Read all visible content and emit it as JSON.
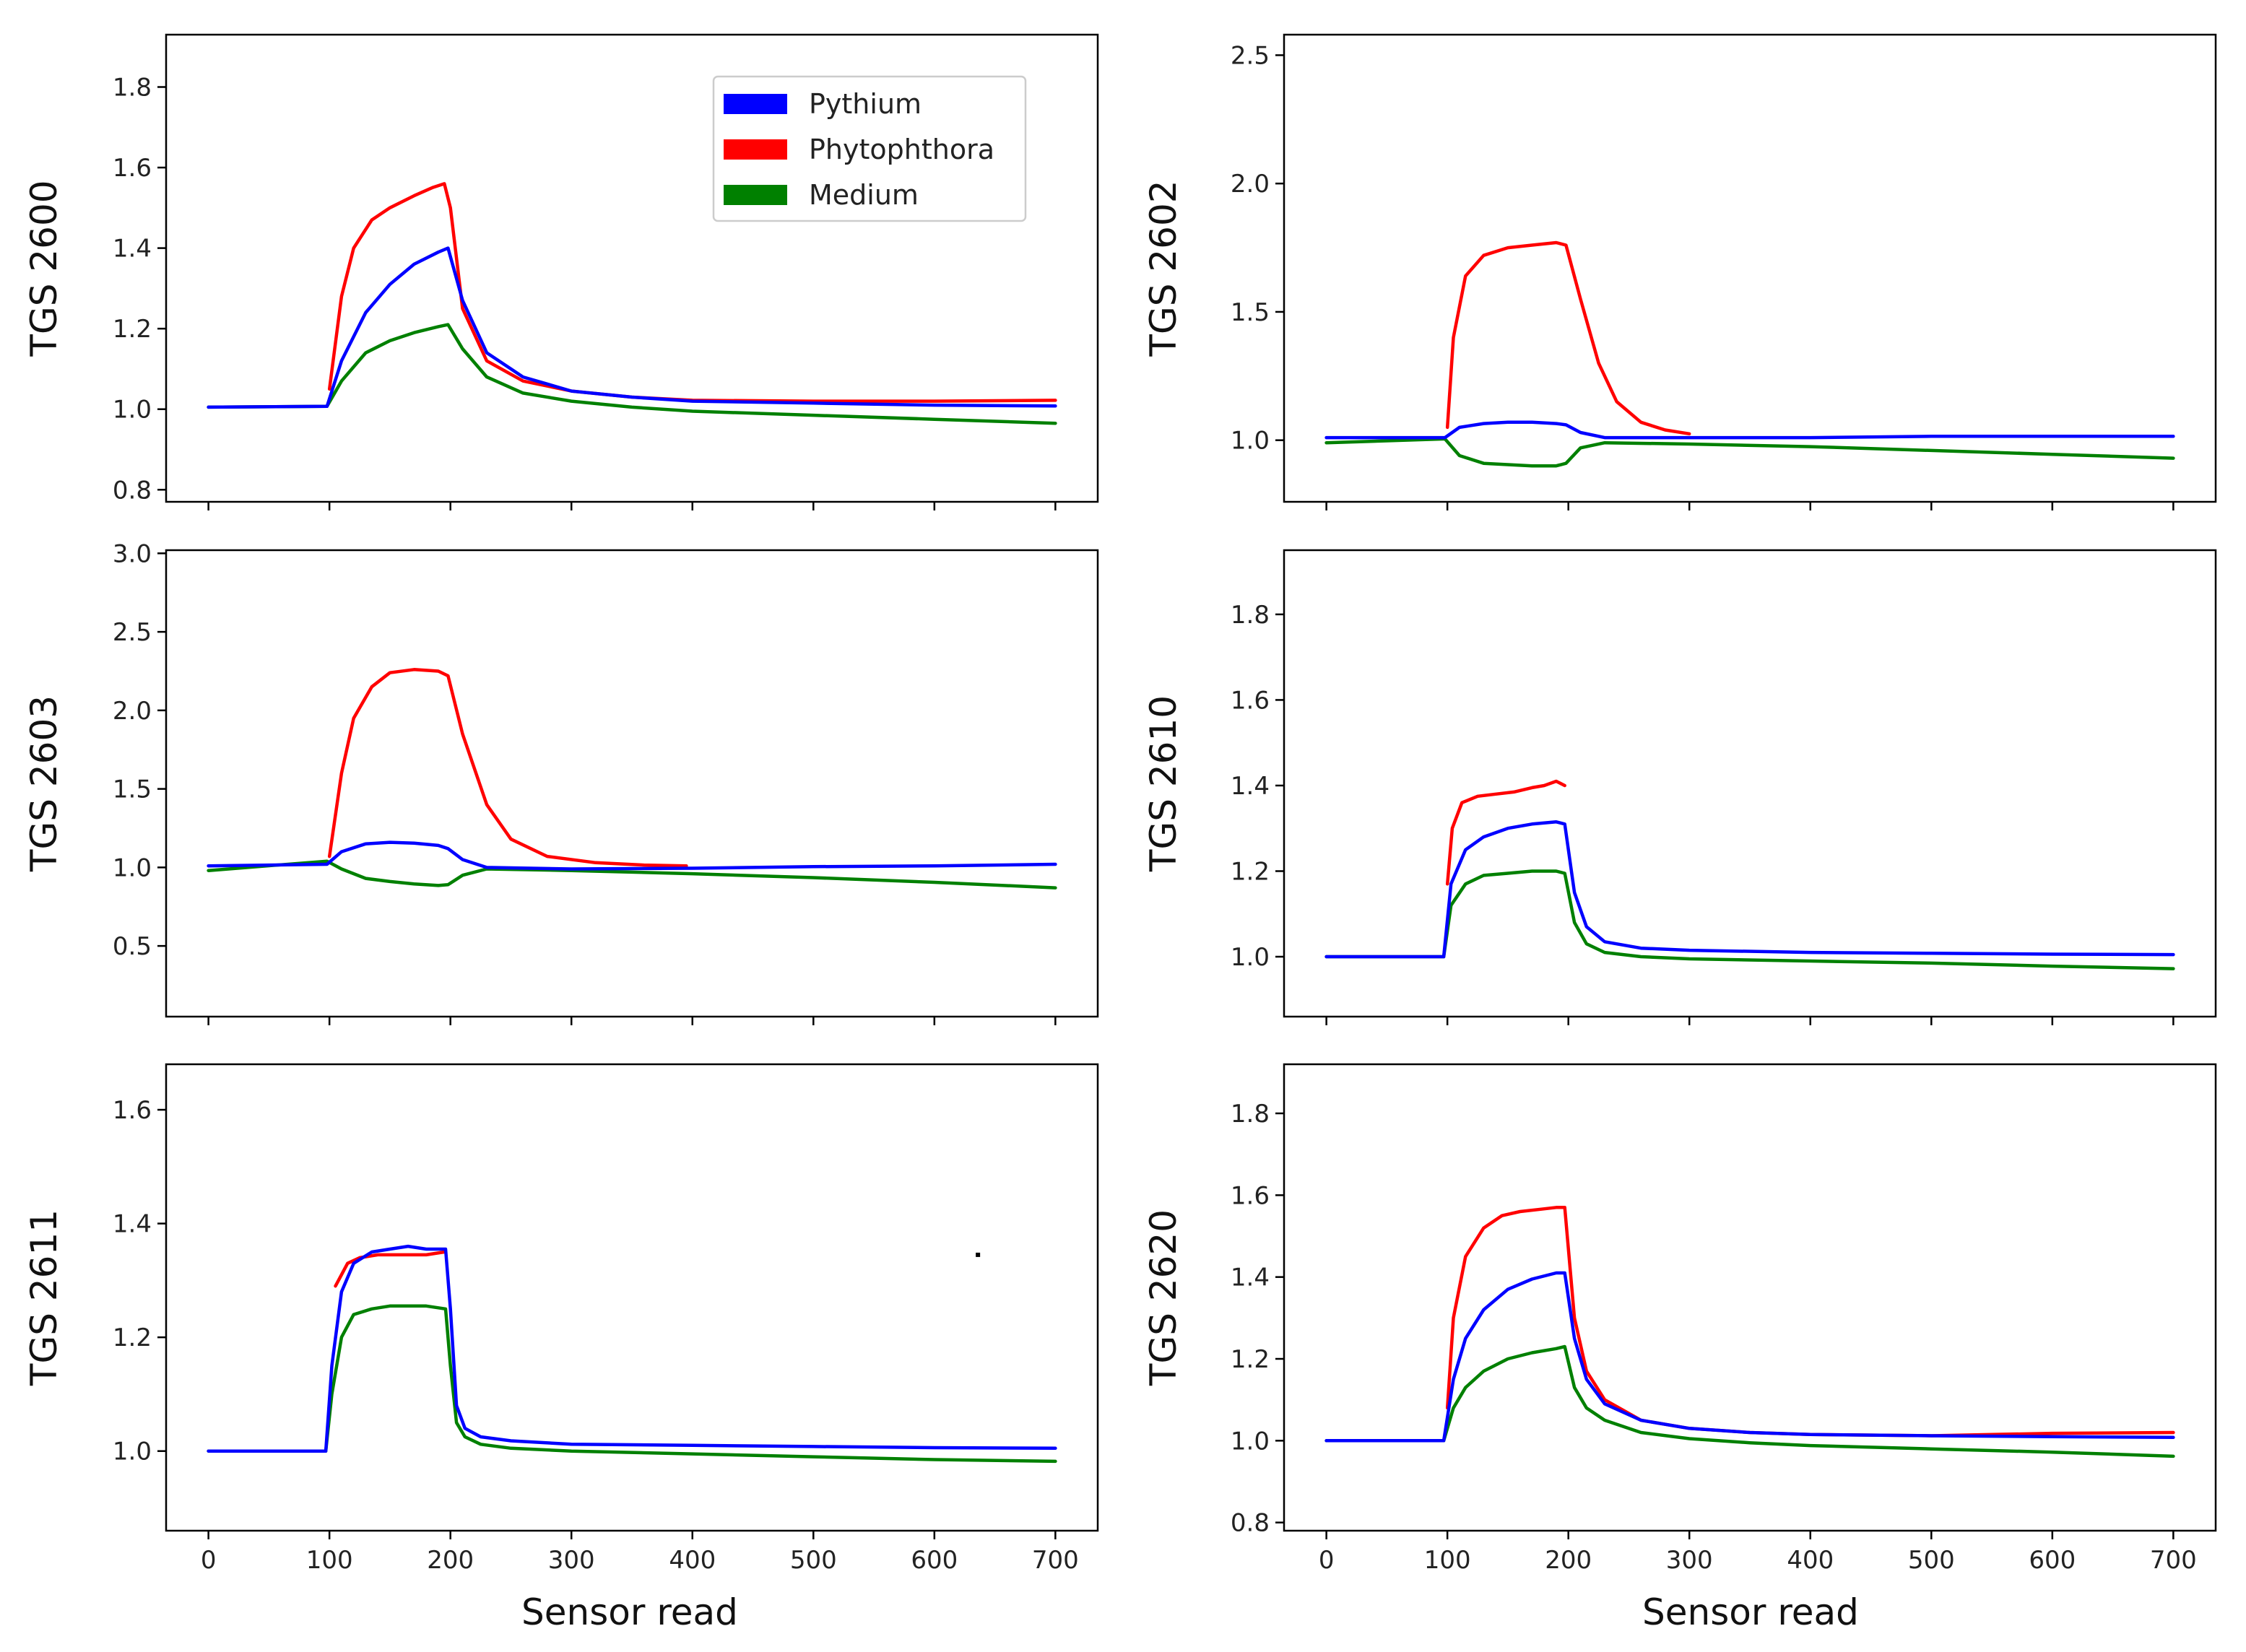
{
  "figure_xlabel": "Sensor read",
  "chart_data": [
    {
      "type": "line",
      "title": "",
      "ylabel": "TGS 2600",
      "xlabel": "",
      "xlim": [
        -35,
        735
      ],
      "ylim": [
        0.77,
        1.93
      ],
      "xticks": [
        0,
        100,
        200,
        300,
        400,
        500,
        600,
        700
      ],
      "yticks": [
        0.8,
        1.0,
        1.2,
        1.4,
        1.6,
        1.8
      ],
      "ytick_labels": [
        "0.8",
        "1.0",
        "1.2",
        "1.4",
        "1.6",
        "1.8"
      ],
      "show_xtick_labels": false,
      "legend": "top-right",
      "series": [
        {
          "name": "Pythium",
          "color": "#0000ff",
          "x": [
            0,
            98,
            110,
            130,
            150,
            170,
            190,
            198,
            210,
            230,
            260,
            300,
            350,
            400,
            500,
            600,
            700
          ],
          "values": [
            1.005,
            1.007,
            1.12,
            1.24,
            1.31,
            1.36,
            1.39,
            1.4,
            1.27,
            1.14,
            1.08,
            1.045,
            1.03,
            1.02,
            1.015,
            1.01,
            1.008
          ]
        },
        {
          "name": "Phytophthora",
          "color": "#ff0000",
          "x": [
            100,
            110,
            120,
            135,
            150,
            170,
            185,
            195,
            200,
            210,
            230,
            260,
            300,
            350,
            400,
            500,
            600,
            700
          ],
          "values": [
            1.05,
            1.28,
            1.4,
            1.47,
            1.5,
            1.53,
            1.55,
            1.56,
            1.5,
            1.25,
            1.12,
            1.07,
            1.045,
            1.03,
            1.022,
            1.02,
            1.02,
            1.022
          ]
        },
        {
          "name": "Medium",
          "color": "#008000",
          "x": [
            0,
            98,
            110,
            130,
            150,
            170,
            190,
            198,
            210,
            230,
            260,
            300,
            350,
            400,
            500,
            600,
            700
          ],
          "values": [
            1.005,
            1.007,
            1.07,
            1.14,
            1.17,
            1.19,
            1.205,
            1.21,
            1.15,
            1.08,
            1.04,
            1.02,
            1.005,
            0.995,
            0.985,
            0.975,
            0.965
          ]
        }
      ]
    },
    {
      "type": "line",
      "title": "",
      "ylabel": "TGS 2602",
      "xlabel": "",
      "xlim": [
        -35,
        735
      ],
      "ylim": [
        0.76,
        2.58
      ],
      "xticks": [
        0,
        100,
        200,
        300,
        400,
        500,
        600,
        700
      ],
      "yticks": [
        1.0,
        1.5,
        2.0,
        2.5
      ],
      "ytick_labels": [
        "1.0",
        "1.5",
        "2.0",
        "2.5"
      ],
      "show_xtick_labels": false,
      "legend": "none",
      "series": [
        {
          "name": "Pythium",
          "color": "#0000ff",
          "x": [
            0,
            98,
            110,
            130,
            150,
            170,
            190,
            198,
            210,
            230,
            300,
            400,
            500,
            600,
            700
          ],
          "values": [
            1.01,
            1.01,
            1.05,
            1.065,
            1.07,
            1.07,
            1.065,
            1.06,
            1.03,
            1.01,
            1.01,
            1.01,
            1.015,
            1.015,
            1.015
          ]
        },
        {
          "name": "Phytophthora",
          "color": "#ff0000",
          "x": [
            100,
            105,
            115,
            130,
            150,
            170,
            190,
            198,
            210,
            225,
            240,
            260,
            280,
            300
          ],
          "values": [
            1.05,
            1.4,
            1.64,
            1.72,
            1.75,
            1.76,
            1.77,
            1.76,
            1.55,
            1.3,
            1.15,
            1.07,
            1.04,
            1.025
          ]
        },
        {
          "name": "Medium",
          "color": "#008000",
          "x": [
            0,
            98,
            110,
            130,
            150,
            170,
            190,
            198,
            210,
            230,
            300,
            400,
            500,
            600,
            700
          ],
          "values": [
            0.99,
            1.005,
            0.94,
            0.91,
            0.905,
            0.9,
            0.9,
            0.91,
            0.97,
            0.99,
            0.985,
            0.975,
            0.96,
            0.945,
            0.93
          ]
        }
      ]
    },
    {
      "type": "line",
      "title": "",
      "ylabel": "TGS 2603",
      "xlabel": "",
      "xlim": [
        -35,
        735
      ],
      "ylim": [
        0.05,
        3.02
      ],
      "xticks": [
        0,
        100,
        200,
        300,
        400,
        500,
        600,
        700
      ],
      "yticks": [
        0.5,
        1.0,
        1.5,
        2.0,
        2.5,
        3.0
      ],
      "ytick_labels": [
        "0.5",
        "1.0",
        "1.5",
        "2.0",
        "2.5",
        "3.0"
      ],
      "show_xtick_labels": false,
      "legend": "none",
      "series": [
        {
          "name": "Pythium",
          "color": "#0000ff",
          "x": [
            0,
            98,
            110,
            130,
            150,
            170,
            190,
            198,
            210,
            230,
            300,
            400,
            500,
            600,
            700
          ],
          "values": [
            1.01,
            1.02,
            1.1,
            1.15,
            1.16,
            1.155,
            1.14,
            1.12,
            1.05,
            1.0,
            0.99,
            0.995,
            1.005,
            1.01,
            1.02
          ]
        },
        {
          "name": "Phytophthora",
          "color": "#ff0000",
          "x": [
            100,
            110,
            120,
            135,
            150,
            170,
            190,
            198,
            210,
            230,
            250,
            280,
            320,
            360,
            395
          ],
          "values": [
            1.07,
            1.6,
            1.95,
            2.15,
            2.24,
            2.26,
            2.25,
            2.22,
            1.85,
            1.4,
            1.18,
            1.07,
            1.03,
            1.015,
            1.01
          ]
        },
        {
          "name": "Medium",
          "color": "#008000",
          "x": [
            0,
            98,
            110,
            130,
            150,
            170,
            190,
            198,
            210,
            230,
            300,
            400,
            500,
            600,
            700
          ],
          "values": [
            0.98,
            1.04,
            0.99,
            0.93,
            0.91,
            0.895,
            0.885,
            0.89,
            0.95,
            0.99,
            0.98,
            0.96,
            0.935,
            0.905,
            0.87
          ]
        }
      ]
    },
    {
      "type": "line",
      "title": "",
      "ylabel": "TGS 2610",
      "xlabel": "",
      "xlim": [
        -35,
        735
      ],
      "ylim": [
        0.86,
        1.95
      ],
      "xticks": [
        0,
        100,
        200,
        300,
        400,
        500,
        600,
        700
      ],
      "yticks": [
        1.0,
        1.2,
        1.4,
        1.6,
        1.8
      ],
      "ytick_labels": [
        "1.0",
        "1.2",
        "1.4",
        "1.6",
        "1.8"
      ],
      "show_xtick_labels": false,
      "legend": "none",
      "series": [
        {
          "name": "Pythium",
          "color": "#0000ff",
          "x": [
            0,
            97,
            103,
            115,
            130,
            150,
            170,
            190,
            197,
            205,
            215,
            230,
            260,
            300,
            400,
            500,
            600,
            700
          ],
          "values": [
            1.0,
            1.0,
            1.17,
            1.25,
            1.28,
            1.3,
            1.31,
            1.315,
            1.31,
            1.15,
            1.07,
            1.035,
            1.02,
            1.015,
            1.01,
            1.008,
            1.006,
            1.005
          ]
        },
        {
          "name": "Phytophthora",
          "color": "#ff0000",
          "x": [
            100,
            104,
            112,
            125,
            140,
            155,
            170,
            180,
            190,
            197
          ],
          "values": [
            1.17,
            1.3,
            1.36,
            1.375,
            1.38,
            1.385,
            1.395,
            1.4,
            1.41,
            1.4
          ]
        },
        {
          "name": "Medium",
          "color": "#008000",
          "x": [
            0,
            97,
            103,
            115,
            130,
            150,
            170,
            190,
            197,
            205,
            215,
            230,
            260,
            300,
            400,
            500,
            600,
            700
          ],
          "values": [
            1.0,
            1.0,
            1.12,
            1.17,
            1.19,
            1.195,
            1.2,
            1.2,
            1.195,
            1.08,
            1.03,
            1.01,
            1.0,
            0.995,
            0.99,
            0.985,
            0.978,
            0.972
          ]
        }
      ]
    },
    {
      "type": "line",
      "title": "",
      "ylabel": "TGS 2611",
      "xlabel": "",
      "xlim": [
        -35,
        735
      ],
      "ylim": [
        0.86,
        1.68
      ],
      "xticks": [
        0,
        100,
        200,
        300,
        400,
        500,
        600,
        700
      ],
      "yticks": [
        1.0,
        1.2,
        1.4,
        1.6
      ],
      "ytick_labels": [
        "1.0",
        "1.2",
        "1.4",
        "1.6"
      ],
      "show_xtick_labels": true,
      "xtick_labels": [
        "0",
        "100",
        "200",
        "300",
        "400",
        "500",
        "600",
        "700"
      ],
      "legend": "none",
      "series": [
        {
          "name": "Pythium",
          "color": "#0000ff",
          "x": [
            0,
            97,
            102,
            110,
            120,
            135,
            150,
            165,
            180,
            196,
            200,
            205,
            212,
            225,
            250,
            300,
            400,
            500,
            600,
            700
          ],
          "values": [
            1.0,
            1.0,
            1.15,
            1.28,
            1.33,
            1.35,
            1.355,
            1.36,
            1.355,
            1.355,
            1.25,
            1.08,
            1.04,
            1.025,
            1.018,
            1.012,
            1.01,
            1.008,
            1.006,
            1.005
          ]
        },
        {
          "name": "Phytophthora",
          "color": "#ff0000",
          "x": [
            105,
            115,
            125,
            140,
            160,
            180,
            195
          ],
          "values": [
            1.29,
            1.33,
            1.34,
            1.345,
            1.345,
            1.345,
            1.35
          ]
        },
        {
          "name": "Medium",
          "color": "#008000",
          "x": [
            0,
            97,
            102,
            110,
            120,
            135,
            150,
            165,
            180,
            196,
            200,
            205,
            212,
            225,
            250,
            300,
            400,
            500,
            600,
            700
          ],
          "values": [
            1.0,
            1.0,
            1.1,
            1.2,
            1.24,
            1.25,
            1.255,
            1.255,
            1.255,
            1.25,
            1.15,
            1.05,
            1.025,
            1.012,
            1.005,
            1.0,
            0.995,
            0.99,
            0.985,
            0.982
          ]
        }
      ]
    },
    {
      "type": "line",
      "title": "",
      "ylabel": "TGS 2620",
      "xlabel": "",
      "xlim": [
        -35,
        735
      ],
      "ylim": [
        0.78,
        1.92
      ],
      "xticks": [
        0,
        100,
        200,
        300,
        400,
        500,
        600,
        700
      ],
      "yticks": [
        0.8,
        1.0,
        1.2,
        1.4,
        1.6,
        1.8
      ],
      "ytick_labels": [
        "0.8",
        "1.0",
        "1.2",
        "1.4",
        "1.6",
        "1.8"
      ],
      "show_xtick_labels": true,
      "xtick_labels": [
        "0",
        "100",
        "200",
        "300",
        "400",
        "500",
        "600",
        "700"
      ],
      "legend": "none",
      "series": [
        {
          "name": "Pythium",
          "color": "#0000ff",
          "x": [
            0,
            97,
            105,
            115,
            130,
            150,
            170,
            190,
            197,
            205,
            215,
            230,
            260,
            300,
            350,
            400,
            500,
            600,
            700
          ],
          "values": [
            1.0,
            1.0,
            1.15,
            1.25,
            1.32,
            1.37,
            1.395,
            1.41,
            1.41,
            1.25,
            1.15,
            1.09,
            1.05,
            1.03,
            1.02,
            1.015,
            1.012,
            1.01,
            1.008
          ]
        },
        {
          "name": "Phytophthora",
          "color": "#ff0000",
          "x": [
            100,
            105,
            115,
            130,
            145,
            160,
            175,
            190,
            197,
            205,
            215,
            230,
            260,
            300,
            350,
            400,
            500,
            600,
            700
          ],
          "values": [
            1.08,
            1.3,
            1.45,
            1.52,
            1.55,
            1.56,
            1.565,
            1.57,
            1.57,
            1.3,
            1.17,
            1.1,
            1.05,
            1.03,
            1.02,
            1.015,
            1.012,
            1.018,
            1.02
          ]
        },
        {
          "name": "Medium",
          "color": "#008000",
          "x": [
            0,
            97,
            105,
            115,
            130,
            150,
            170,
            190,
            197,
            205,
            215,
            230,
            260,
            300,
            350,
            400,
            500,
            600,
            700
          ],
          "values": [
            1.0,
            1.0,
            1.08,
            1.13,
            1.17,
            1.2,
            1.215,
            1.225,
            1.23,
            1.13,
            1.08,
            1.05,
            1.02,
            1.005,
            0.995,
            0.988,
            0.98,
            0.972,
            0.962
          ]
        }
      ]
    }
  ],
  "legend": {
    "items": [
      {
        "label": "Pythium",
        "color": "#0000ff"
      },
      {
        "label": "Phytophthora",
        "color": "#ff0000"
      },
      {
        "label": "Medium",
        "color": "#008000"
      }
    ]
  }
}
